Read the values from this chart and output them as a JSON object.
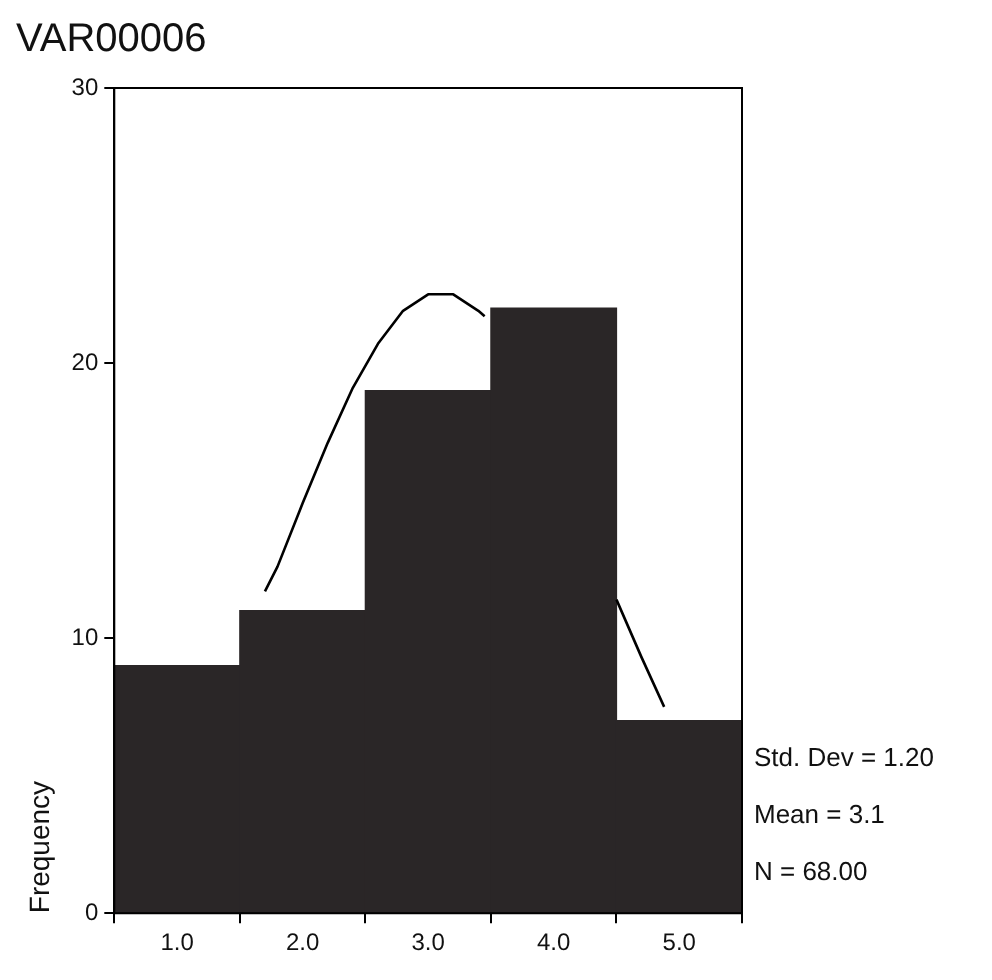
{
  "chart_data": {
    "type": "histogram",
    "title": "VAR00006",
    "ylabel": "Frequency",
    "bins": [
      0.5,
      1.5,
      2.5,
      3.5,
      4.5,
      5.5
    ],
    "values": [
      9,
      11,
      19,
      22,
      7
    ],
    "color": "#2a2627",
    "series": [
      {
        "type": "line",
        "color": "#000000",
        "x": [
          1.7,
          1.8,
          2.0,
          2.2,
          2.4,
          2.6,
          2.8,
          3.0,
          3.2,
          3.4,
          3.45,
          4.0,
          4.5,
          4.7,
          4.88
        ],
        "values": [
          11.7,
          12.6,
          14.9,
          17.1,
          19.1,
          20.7,
          21.9,
          22.5,
          22.5,
          21.9,
          21.7,
          null,
          11.4,
          9.3,
          7.5
        ]
      }
    ],
    "xlim": [
      0.5,
      5.5
    ],
    "xticks": [
      {
        "value": 1,
        "label": "1.0"
      },
      {
        "value": 2,
        "label": "2.0"
      },
      {
        "value": 3,
        "label": "3.0"
      },
      {
        "value": 4,
        "label": "4.0"
      },
      {
        "value": 5,
        "label": "5.0"
      }
    ],
    "ylim": [
      0,
      30
    ],
    "yticks": [
      0,
      10,
      20,
      30
    ],
    "grid": false,
    "legend": false,
    "marker": "none",
    "line_style": "solid",
    "annotations": [
      "Std. Dev = 1.20",
      "Mean = 3.1",
      "N = 68.00"
    ]
  }
}
